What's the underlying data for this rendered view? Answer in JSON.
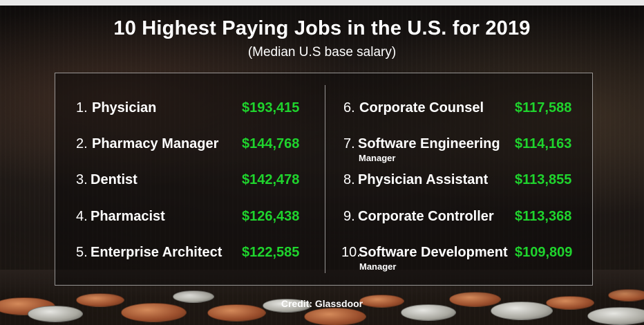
{
  "header": {
    "title": "10 Highest Paying Jobs in the U.S. for 2019",
    "subtitle": "(Median U.S base salary)"
  },
  "jobs": [
    {
      "rank": "1.",
      "title": "Physician",
      "title_line2": "",
      "salary": "$193,415"
    },
    {
      "rank": "2.",
      "title": "Pharmacy Manager",
      "title_line2": "",
      "salary": "$144,768"
    },
    {
      "rank": "3.",
      "title": "Dentist",
      "title_line2": "",
      "salary": "$142,478"
    },
    {
      "rank": "4.",
      "title": "Pharmacist",
      "title_line2": "",
      "salary": "$126,438"
    },
    {
      "rank": "5.",
      "title": "Enterprise Architect",
      "title_line2": "",
      "salary": "$122,585"
    },
    {
      "rank": "6.",
      "title": "Corporate Counsel",
      "title_line2": "",
      "salary": "$117,588"
    },
    {
      "rank": "7.",
      "title": "Software Engineering",
      "title_line2": "Manager",
      "salary": "$114,163"
    },
    {
      "rank": "8.",
      "title": "Physician Assistant",
      "title_line2": "",
      "salary": "$113,855"
    },
    {
      "rank": "9.",
      "title": "Corporate Controller",
      "title_line2": "",
      "salary": "$113,368"
    },
    {
      "rank": "10.",
      "title": "Software Development",
      "title_line2": "Manager",
      "salary": "$109,809"
    }
  ],
  "footer": {
    "credit": "Credit: Glassdoor"
  },
  "colors": {
    "salary": "#1fd42d",
    "text": "#ffffff",
    "panel_border": "#bdbdbd"
  }
}
